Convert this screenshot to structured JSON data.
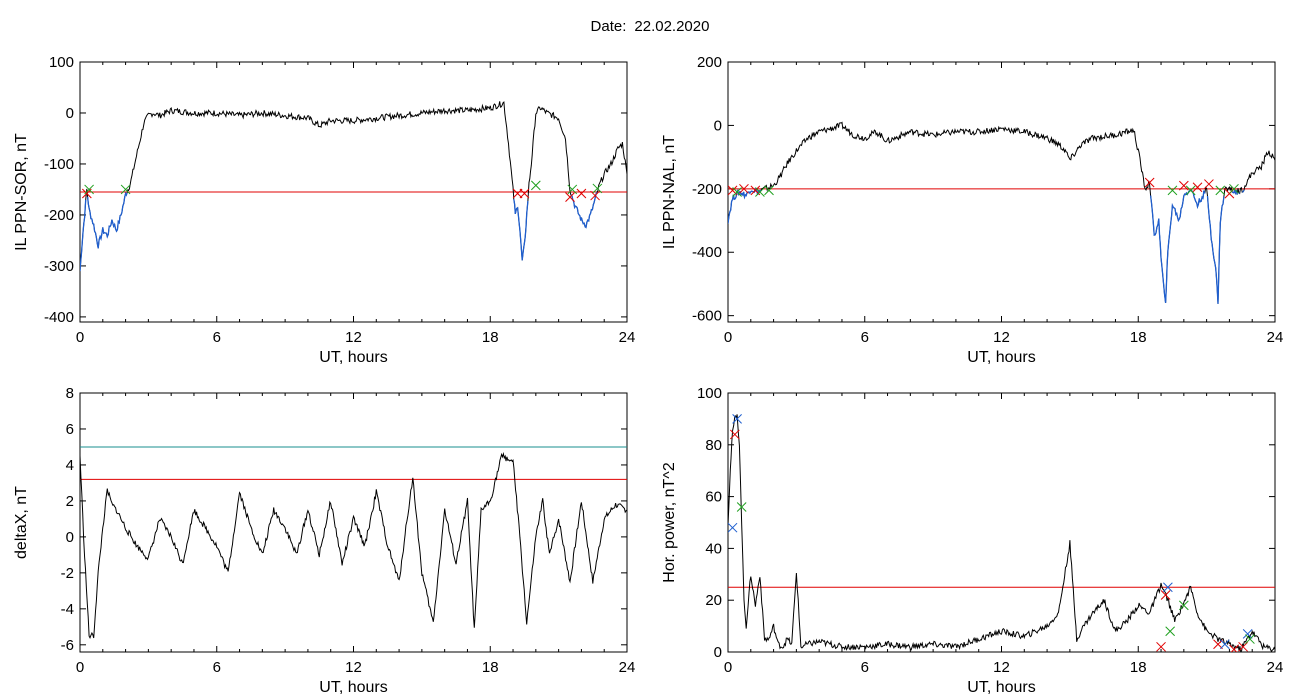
{
  "header": {
    "date_label": "Date:",
    "date_value": "22.02.2020"
  },
  "colors": {
    "data_line": "#000000",
    "substorm_segment": "#1f5fcf",
    "threshold_red": "#e00000",
    "threshold_teal": "#1a8f8f",
    "marker_red": "#e00000",
    "marker_green": "#1fa01f",
    "marker_blue": "#1f5fcf"
  },
  "chart_data": [
    {
      "id": "ppn-sor",
      "type": "line",
      "title": "",
      "xlabel": "UT, hours",
      "ylabel": "IL PPN-SOR, nT",
      "xlim": [
        0,
        24
      ],
      "ylim": [
        -410,
        100
      ],
      "xticks": [
        0,
        6,
        12,
        18,
        24
      ],
      "yticks": [
        100,
        0,
        -100,
        -200,
        -300,
        -400
      ],
      "series": [
        {
          "x": [
            0,
            0.1,
            0.2,
            0.3,
            0.4,
            0.6,
            0.8,
            1.0,
            1.2,
            1.4,
            1.6,
            1.8,
            2.0,
            2.1,
            2.2,
            2.4,
            2.6,
            2.8,
            3.0,
            3.2,
            3.5,
            4,
            5,
            6,
            7,
            8,
            9,
            10,
            10.5,
            11,
            12,
            13,
            14,
            15,
            16,
            17,
            17.5,
            18,
            18.3,
            18.6,
            18.8,
            19.0,
            19.1,
            19.2,
            19.3,
            19.4,
            19.5,
            19.6,
            19.7,
            19.8,
            20.0,
            20.2,
            20.5,
            21.0,
            21.3,
            21.5,
            21.7,
            21.9,
            22.0,
            22.2,
            22.4,
            22.6,
            22.8,
            23.0,
            23.3,
            23.6,
            23.8,
            24
          ],
          "y": [
            -310,
            -250,
            -200,
            -150,
            -190,
            -220,
            -260,
            -230,
            -240,
            -210,
            -230,
            -200,
            -160,
            -150,
            -140,
            -100,
            -60,
            -20,
            -5,
            0,
            -5,
            5,
            0,
            0,
            -5,
            0,
            -5,
            -10,
            -25,
            -15,
            -15,
            -10,
            -5,
            0,
            5,
            5,
            8,
            10,
            15,
            20,
            -60,
            -150,
            -200,
            -180,
            -230,
            -290,
            -260,
            -200,
            -140,
            -100,
            0,
            10,
            0,
            -10,
            -50,
            -150,
            -180,
            -200,
            -210,
            -220,
            -200,
            -170,
            -140,
            -120,
            -100,
            -70,
            -60,
            -120
          ]
        }
      ],
      "threshold": -155,
      "markers": [
        {
          "x": 0.3,
          "y": -158,
          "color": "red"
        },
        {
          "x": 0.4,
          "y": -150,
          "color": "green"
        },
        {
          "x": 2.0,
          "y": -150,
          "color": "green"
        },
        {
          "x": 19.2,
          "y": -158,
          "color": "red"
        },
        {
          "x": 19.5,
          "y": -158,
          "color": "red"
        },
        {
          "x": 20.0,
          "y": -142,
          "color": "green"
        },
        {
          "x": 21.5,
          "y": -165,
          "color": "red"
        },
        {
          "x": 21.6,
          "y": -150,
          "color": "green"
        },
        {
          "x": 22.0,
          "y": -158,
          "color": "red"
        },
        {
          "x": 22.6,
          "y": -162,
          "color": "red"
        },
        {
          "x": 22.7,
          "y": -148,
          "color": "green"
        }
      ]
    },
    {
      "id": "ppn-nal",
      "type": "line",
      "title": "",
      "xlabel": "UT, hours",
      "ylabel": "IL PPN-NAL, nT",
      "xlim": [
        0,
        24
      ],
      "ylim": [
        -620,
        200
      ],
      "xticks": [
        0,
        6,
        12,
        18,
        24
      ],
      "yticks": [
        200,
        0,
        -200,
        -400,
        -600
      ],
      "series": [
        {
          "x": [
            0,
            0.2,
            0.5,
            0.8,
            1.0,
            1.3,
            1.6,
            2.0,
            2.3,
            2.6,
            3.0,
            3.5,
            4,
            4.5,
            5,
            5.5,
            6,
            6.5,
            7,
            8,
            9,
            10,
            11,
            12,
            13,
            14,
            14.5,
            14.8,
            15.0,
            15.5,
            16,
            17,
            17.5,
            17.8,
            18.0,
            18.3,
            18.5,
            18.7,
            18.9,
            19.0,
            19.1,
            19.2,
            19.3,
            19.5,
            19.8,
            20.0,
            20.3,
            20.6,
            21.0,
            21.2,
            21.4,
            21.5,
            21.6,
            21.8,
            22.0,
            22.3,
            22.6,
            23.0,
            23.4,
            23.7,
            24
          ],
          "y": [
            -300,
            -230,
            -210,
            -220,
            -200,
            -210,
            -200,
            -190,
            -160,
            -120,
            -80,
            -40,
            -20,
            -10,
            0,
            -30,
            -40,
            -20,
            -50,
            -20,
            -30,
            -20,
            -20,
            -10,
            -20,
            -40,
            -60,
            -80,
            -110,
            -60,
            -40,
            -30,
            -20,
            -15,
            -80,
            -200,
            -180,
            -350,
            -300,
            -420,
            -500,
            -550,
            -400,
            -250,
            -300,
            -220,
            -200,
            -250,
            -200,
            -350,
            -450,
            -560,
            -300,
            -200,
            -200,
            -210,
            -200,
            -150,
            -130,
            -80,
            -110
          ]
        }
      ],
      "threshold": -200,
      "markers": [
        {
          "x": 0.2,
          "y": -205,
          "color": "red"
        },
        {
          "x": 0.4,
          "y": -210,
          "color": "green"
        },
        {
          "x": 0.7,
          "y": -200,
          "color": "red"
        },
        {
          "x": 1.2,
          "y": -205,
          "color": "red"
        },
        {
          "x": 1.4,
          "y": -210,
          "color": "green"
        },
        {
          "x": 1.8,
          "y": -205,
          "color": "green"
        },
        {
          "x": 18.5,
          "y": -180,
          "color": "red"
        },
        {
          "x": 19.5,
          "y": -205,
          "color": "green"
        },
        {
          "x": 20.0,
          "y": -190,
          "color": "red"
        },
        {
          "x": 20.3,
          "y": -205,
          "color": "green"
        },
        {
          "x": 20.6,
          "y": -195,
          "color": "red"
        },
        {
          "x": 21.1,
          "y": -185,
          "color": "red"
        },
        {
          "x": 21.6,
          "y": -205,
          "color": "green"
        },
        {
          "x": 22.0,
          "y": -215,
          "color": "red"
        },
        {
          "x": 22.2,
          "y": -200,
          "color": "green"
        }
      ]
    },
    {
      "id": "deltax",
      "type": "line",
      "title": "",
      "xlabel": "UT, hours",
      "ylabel": "deltaX, nT",
      "xlim": [
        0,
        24
      ],
      "ylim": [
        -6.4,
        8
      ],
      "xticks": [
        0,
        6,
        12,
        18,
        24
      ],
      "yticks": [
        8,
        6,
        4,
        2,
        0,
        -2,
        -4,
        -6
      ],
      "series": [
        {
          "x": [
            0,
            0.2,
            0.4,
            0.6,
            0.8,
            1.0,
            1.2,
            1.4,
            1.6,
            2.0,
            2.5,
            3.0,
            3.5,
            4.0,
            4.5,
            5.0,
            5.5,
            6.0,
            6.5,
            7.0,
            7.5,
            8.0,
            8.5,
            9.0,
            9.5,
            10.0,
            10.5,
            11.0,
            11.5,
            12.0,
            12.5,
            13.0,
            13.5,
            14.0,
            14.3,
            14.6,
            15.0,
            15.5,
            16.0,
            16.5,
            17.0,
            17.3,
            17.6,
            18.0,
            18.5,
            19.0,
            19.3,
            19.6,
            20.0,
            20.3,
            20.6,
            21.0,
            21.5,
            22.0,
            22.5,
            23.0,
            23.5,
            24.0
          ],
          "y": [
            4.5,
            -1,
            -5.5,
            -5.5,
            -2,
            0.5,
            2.6,
            1.8,
            1.5,
            0.5,
            -0.5,
            -1.2,
            1.0,
            0,
            -1.5,
            1.5,
            0.5,
            -0.5,
            -2.0,
            2.5,
            0.5,
            -1,
            1.5,
            0.5,
            -1,
            1.5,
            -1,
            2.0,
            -1.5,
            1.0,
            -0.5,
            2.5,
            -0.5,
            -2.5,
            0.5,
            3.3,
            -2,
            -4.8,
            1.5,
            -1.5,
            2.0,
            -5.2,
            1.5,
            2.0,
            4.5,
            4.2,
            0,
            -4.8,
            0,
            2.0,
            -1,
            1.0,
            -2.5,
            2.0,
            -2.5,
            1.0,
            1.8,
            1.5
          ]
        }
      ],
      "thresholds": [
        {
          "y": 5.0,
          "color": "teal"
        },
        {
          "y": 3.2,
          "color": "red"
        }
      ]
    },
    {
      "id": "hor-power",
      "type": "line",
      "title": "",
      "xlabel": "UT, hours",
      "ylabel": "Hor. power, nT^2",
      "xlim": [
        0,
        24
      ],
      "ylim": [
        0,
        100
      ],
      "xticks": [
        0,
        6,
        12,
        18,
        24
      ],
      "yticks": [
        100,
        80,
        60,
        40,
        20,
        0
      ],
      "series": [
        {
          "x": [
            0,
            0.1,
            0.2,
            0.3,
            0.4,
            0.5,
            0.6,
            0.7,
            0.8,
            1.0,
            1.2,
            1.4,
            1.6,
            1.8,
            2.0,
            2.2,
            2.4,
            2.6,
            2.8,
            3.0,
            3.2,
            3.5,
            4,
            5,
            6,
            7,
            8,
            9,
            10,
            11,
            12,
            13,
            14,
            14.5,
            15.0,
            15.3,
            15.6,
            16,
            16.5,
            17,
            17.5,
            18,
            18.5,
            19.0,
            19.3,
            19.6,
            20.0,
            20.3,
            20.6,
            21.0,
            21.5,
            22.0,
            22.5,
            23.0,
            23.5,
            24.0
          ],
          "y": [
            50,
            70,
            85,
            90,
            92,
            80,
            50,
            20,
            10,
            30,
            18,
            30,
            5,
            5,
            10,
            3,
            2,
            5,
            3,
            31,
            2,
            3,
            4,
            2,
            2,
            3,
            2,
            3,
            2,
            5,
            8,
            6,
            10,
            15,
            42,
            5,
            10,
            15,
            20,
            8,
            12,
            18,
            15,
            26,
            20,
            12,
            19,
            25,
            15,
            8,
            5,
            3,
            1,
            8,
            2,
            1
          ]
        }
      ],
      "threshold": 25,
      "markers": [
        {
          "x": 0.2,
          "y": 48,
          "color": "blue"
        },
        {
          "x": 0.3,
          "y": 84,
          "color": "red"
        },
        {
          "x": 0.4,
          "y": 90,
          "color": "blue"
        },
        {
          "x": 0.6,
          "y": 56,
          "color": "green"
        },
        {
          "x": 19.3,
          "y": 25,
          "color": "blue"
        },
        {
          "x": 19.2,
          "y": 22,
          "color": "red"
        },
        {
          "x": 19.4,
          "y": 8,
          "color": "green"
        },
        {
          "x": 20.0,
          "y": 18,
          "color": "green"
        },
        {
          "x": 19.0,
          "y": 2,
          "color": "red"
        },
        {
          "x": 21.5,
          "y": 3,
          "color": "red"
        },
        {
          "x": 21.8,
          "y": 3,
          "color": "blue"
        },
        {
          "x": 22.2,
          "y": 1,
          "color": "red"
        },
        {
          "x": 22.6,
          "y": 2,
          "color": "red"
        },
        {
          "x": 22.8,
          "y": 7,
          "color": "blue"
        },
        {
          "x": 22.9,
          "y": 5,
          "color": "green"
        }
      ]
    }
  ]
}
